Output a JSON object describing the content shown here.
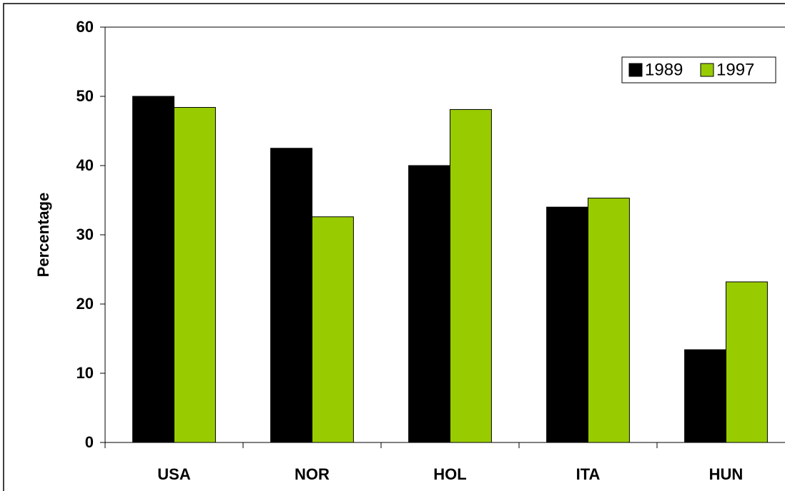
{
  "chart_data": {
    "type": "bar",
    "y_label": "Percentage",
    "categories": [
      "USA",
      "NOR",
      "HOL",
      "ITA",
      "HUN"
    ],
    "series": [
      {
        "name": "1989",
        "color": "#000000",
        "values": [
          50,
          42.5,
          40,
          34,
          13.4
        ]
      },
      {
        "name": "1997",
        "color": "#99cc00",
        "values": [
          48.4,
          32.6,
          48.1,
          35.3,
          23.2
        ]
      }
    ],
    "ylim": [
      0,
      60
    ],
    "yticks": [
      0,
      10,
      20,
      30,
      40,
      50,
      60
    ],
    "legend": "top-right"
  }
}
